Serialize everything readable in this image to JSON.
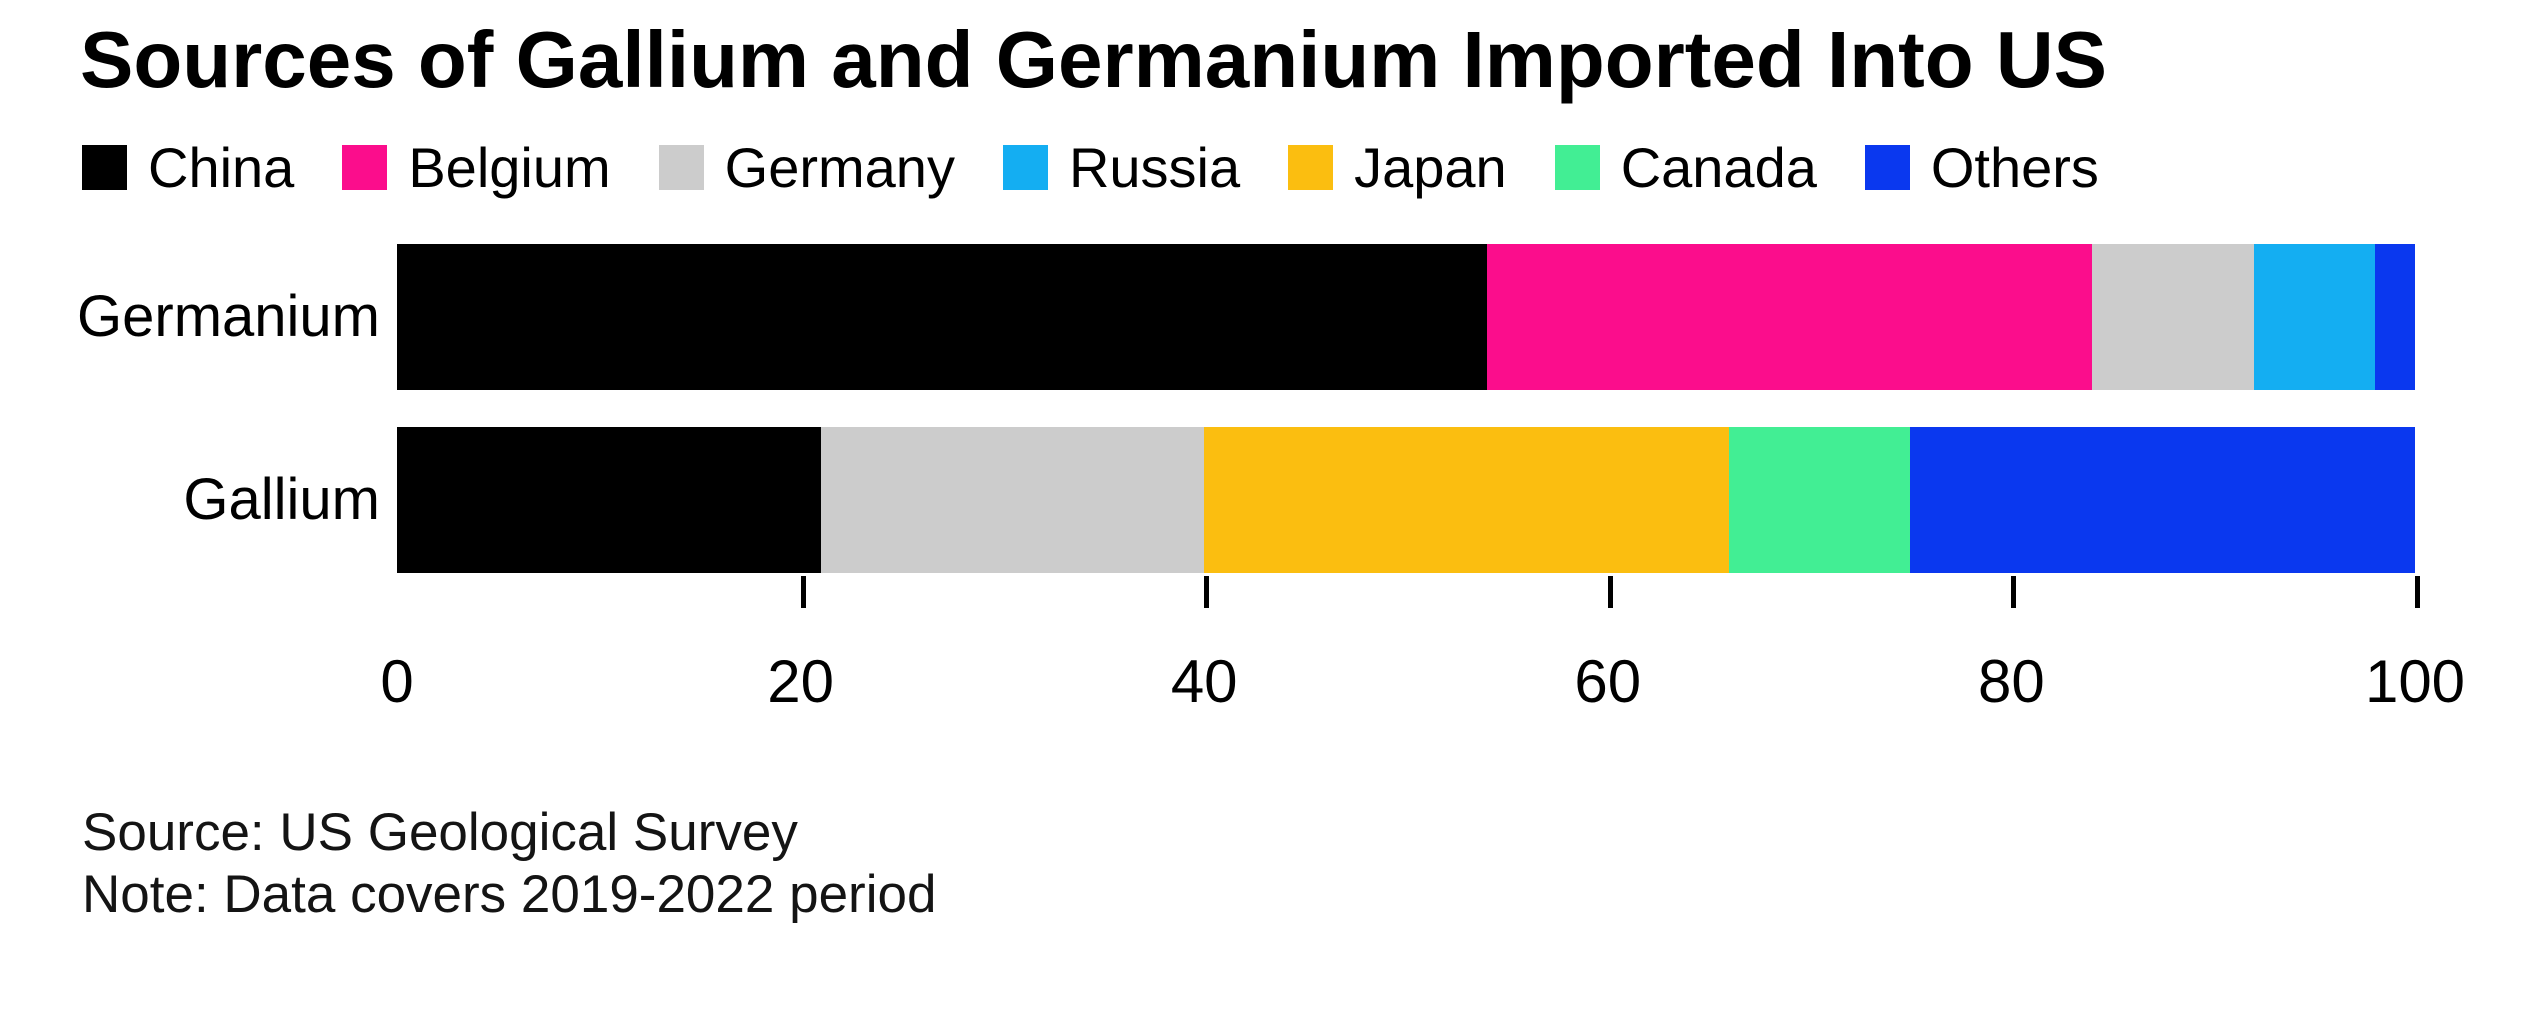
{
  "title": "Sources of Gallium and Germanium Imported Into US",
  "chart_data": {
    "type": "bar",
    "orientation": "horizontal-stacked",
    "title": "Sources of Gallium and Germanium Imported Into US",
    "categories": [
      "Germanium",
      "Gallium"
    ],
    "series": [
      {
        "name": "China",
        "color": "#000000",
        "values": [
          54,
          21
        ]
      },
      {
        "name": "Belgium",
        "color": "#fb0d8c",
        "values": [
          30,
          0
        ]
      },
      {
        "name": "Germany",
        "color": "#cccccc",
        "values": [
          8,
          19
        ]
      },
      {
        "name": "Russia",
        "color": "#14aef2",
        "values": [
          6,
          0
        ]
      },
      {
        "name": "Japan",
        "color": "#fbbe10",
        "values": [
          0,
          26
        ]
      },
      {
        "name": "Canada",
        "color": "#42ee94",
        "values": [
          0,
          9
        ]
      },
      {
        "name": "Others",
        "color": "#0a38ef",
        "values": [
          2,
          25
        ]
      }
    ],
    "xlim": [
      0,
      100
    ],
    "xticks": [
      0,
      20,
      40,
      60,
      80,
      100
    ],
    "grid": false,
    "legend_position": "top"
  },
  "footer": {
    "source": "Source: US Geological Survey",
    "note": "Note: Data covers 2019-2022 period"
  }
}
